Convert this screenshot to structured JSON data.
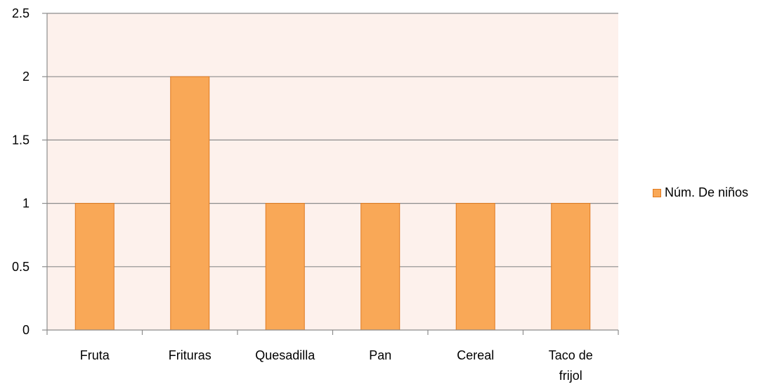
{
  "chart_data": {
    "type": "bar",
    "categories": [
      "Fruta",
      "Frituras",
      "Quesadilla",
      "Pan",
      "Cereal",
      "Taco de frijol"
    ],
    "category_label_lines": [
      [
        "Fruta"
      ],
      [
        "Frituras"
      ],
      [
        "Quesadilla"
      ],
      [
        "Pan"
      ],
      [
        "Cereal"
      ],
      [
        "Taco de",
        "frijol"
      ]
    ],
    "series": [
      {
        "name": "Núm. De niños",
        "values": [
          1,
          2,
          1,
          1,
          1,
          1
        ]
      }
    ],
    "ylim": [
      0,
      2.5
    ],
    "y_ticks": [
      0,
      0.5,
      1,
      1.5,
      2,
      2.5
    ],
    "y_tick_labels": [
      "0",
      "0.5",
      "1",
      "1.5",
      "2",
      "2.5"
    ],
    "grid": true,
    "legend_position": "right",
    "colors": {
      "bar_fill": "#f9a857",
      "bar_stroke": "#e07b20",
      "plot_background": "#fdf1ec",
      "gridline": "#8c8c8c",
      "axis": "#8c8c8c"
    }
  }
}
